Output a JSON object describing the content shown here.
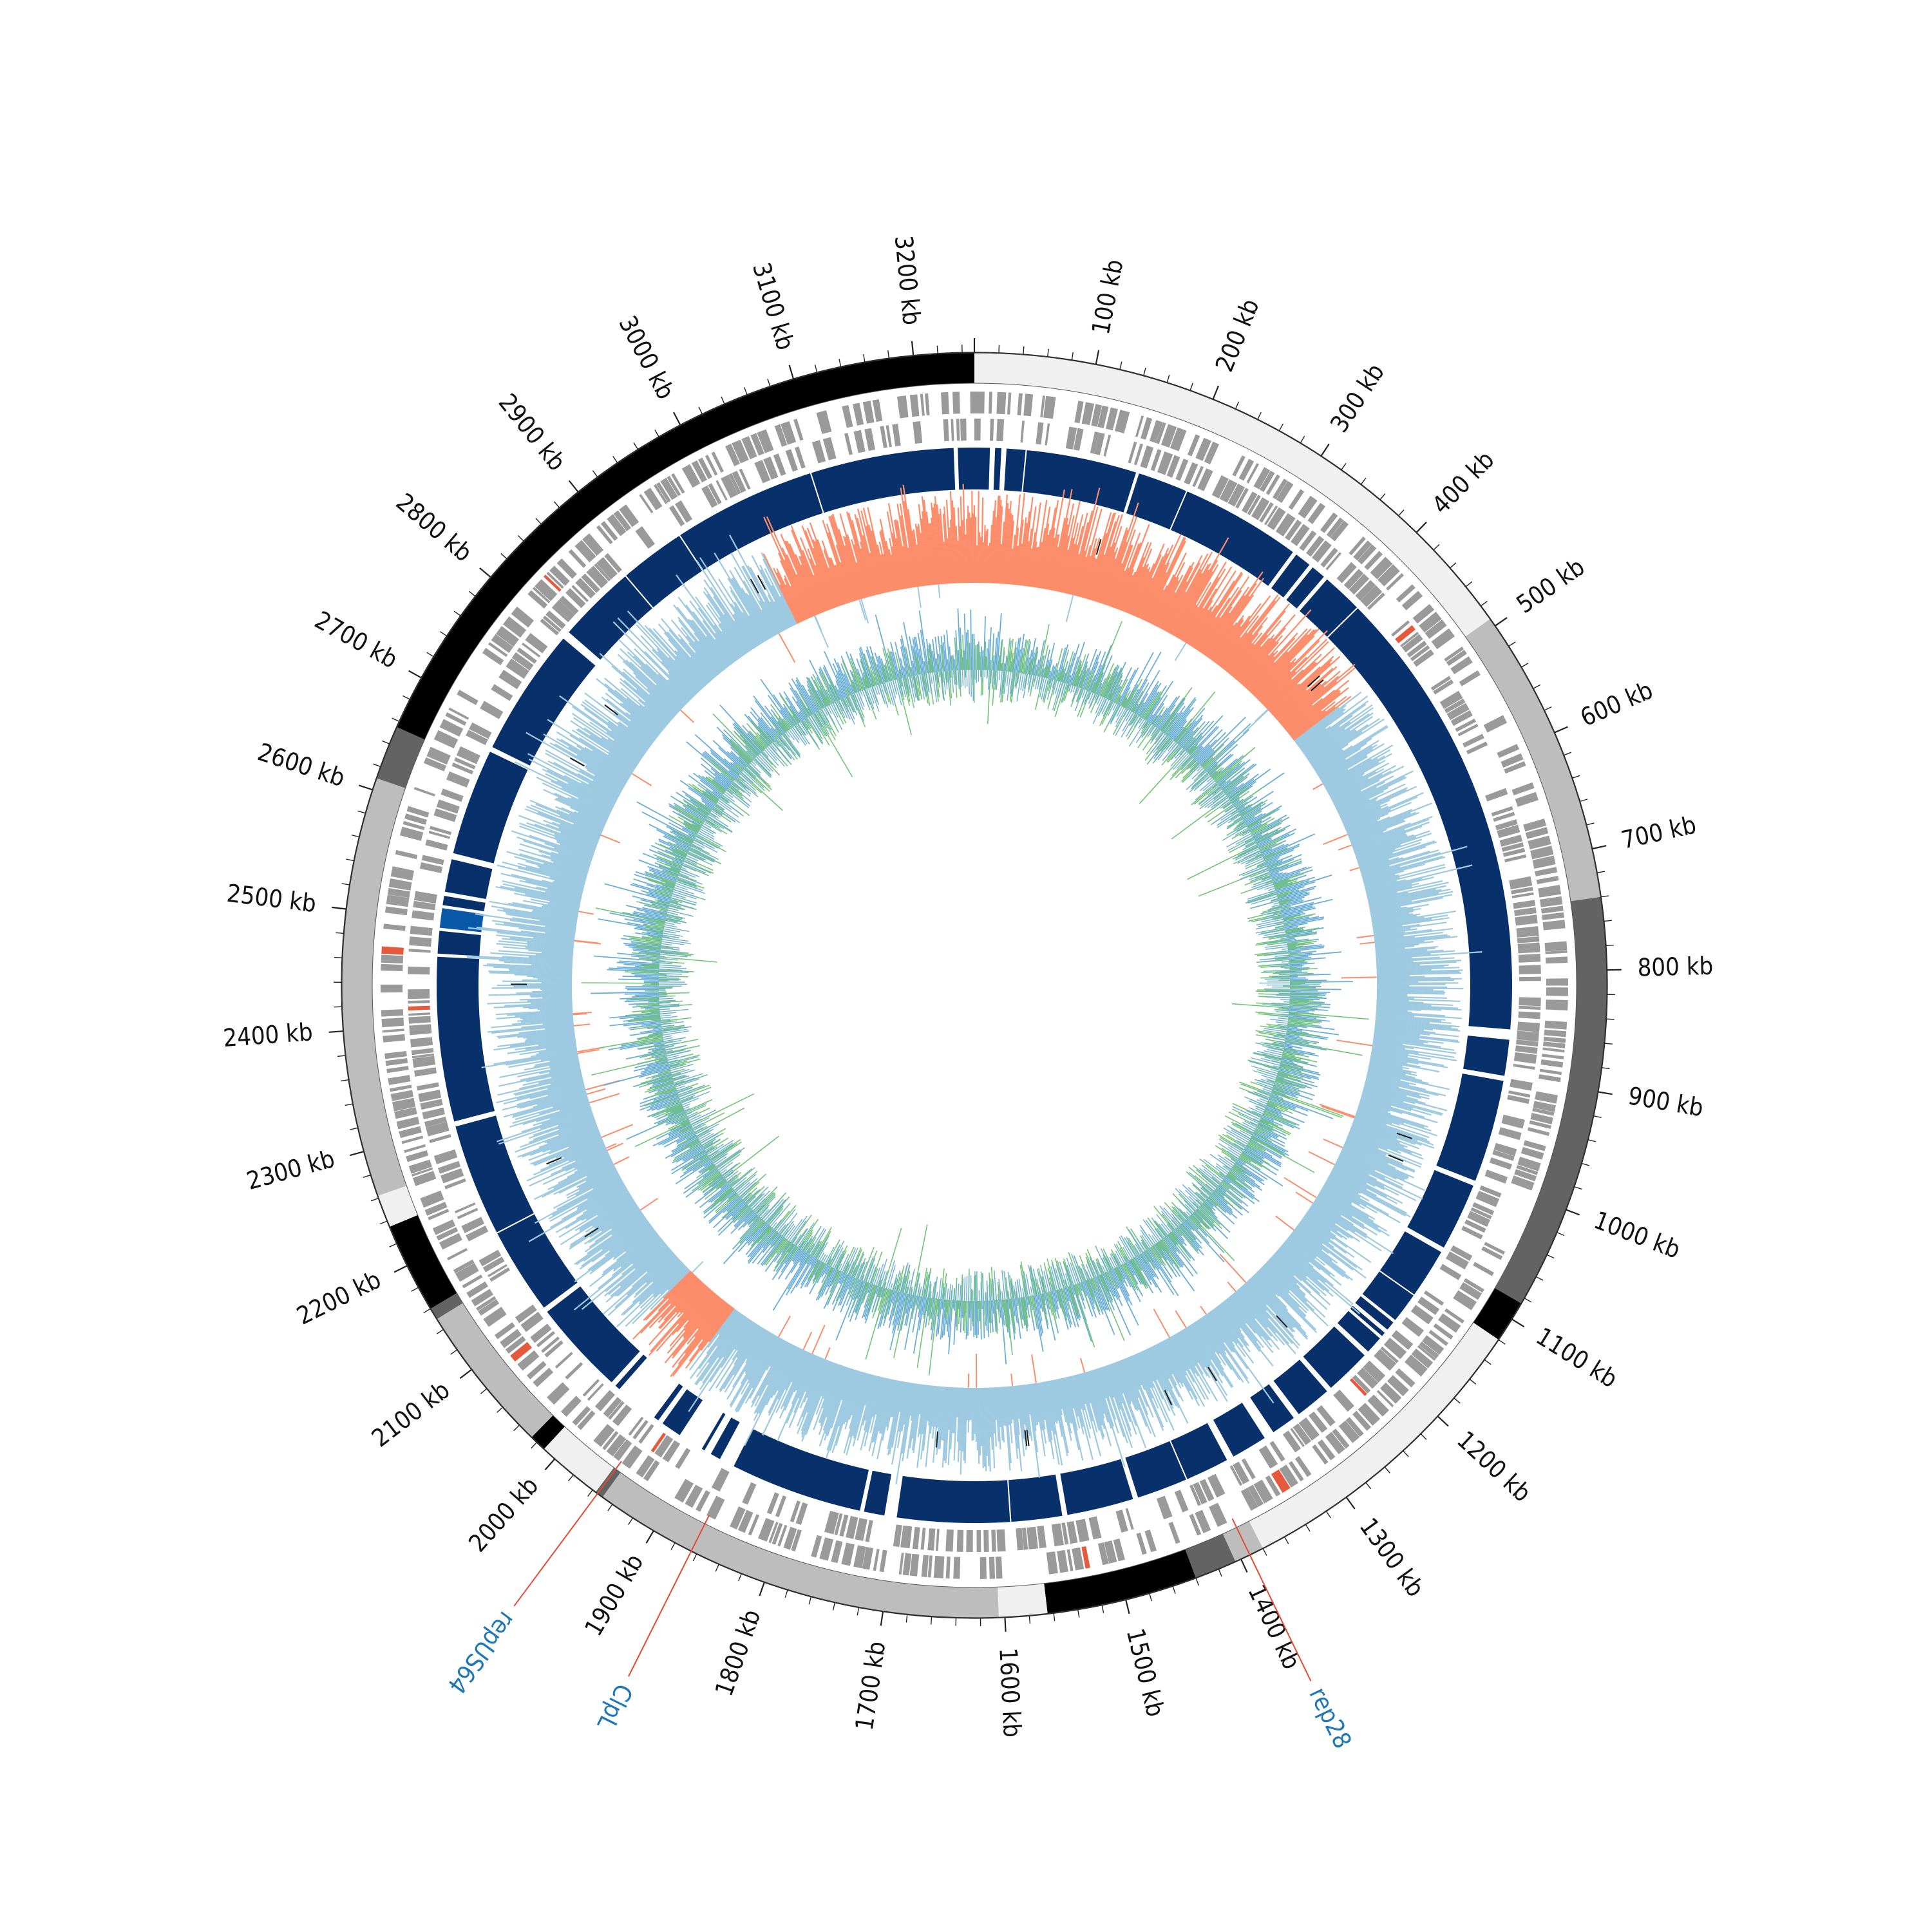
{
  "genome": {
    "length_kb": 3250,
    "tick_unit": "kb",
    "major_tick_labels": [
      "100 kb",
      "200 kb",
      "300 kb",
      "400 kb",
      "500 kb",
      "600 kb",
      "700 kb",
      "800 kb",
      "900 kb",
      "1000 kb",
      "1100 kb",
      "1200 kb",
      "1300 kb",
      "1400 kb",
      "1500 kb",
      "1600 kb",
      "1700 kb",
      "1800 kb",
      "1900 kb",
      "2000 kb",
      "2100 kb",
      "2200 kb",
      "2300 kb",
      "2400 kb",
      "2500 kb",
      "2600 kb",
      "2700 kb",
      "2800 kb",
      "2900 kb",
      "3000 kb",
      "3100 kb",
      "3200 kb"
    ]
  },
  "chart_data": {
    "type": "circular-genome-map",
    "tracks": [
      {
        "track": "outer-segments",
        "segments": [
          {
            "start": 0,
            "end": 493,
            "color": "#f0f0f0"
          },
          {
            "start": 493,
            "end": 740,
            "color": "#bdbdbd"
          },
          {
            "start": 740,
            "end": 1085,
            "color": "#636363"
          },
          {
            "start": 1085,
            "end": 1120,
            "color": "#000000"
          },
          {
            "start": 1120,
            "end": 1380,
            "color": "#f0f0f0"
          },
          {
            "start": 1380,
            "end": 1405,
            "color": "#bdbdbd"
          },
          {
            "start": 1405,
            "end": 1440,
            "color": "#636363"
          },
          {
            "start": 1440,
            "end": 1565,
            "color": "#000000"
          },
          {
            "start": 1565,
            "end": 1605,
            "color": "#f0f0f0"
          },
          {
            "start": 1605,
            "end": 1950,
            "color": "#bdbdbd"
          },
          {
            "start": 1950,
            "end": 1957,
            "color": "#636363"
          },
          {
            "start": 1957,
            "end": 2012,
            "color": "#f0f0f0"
          },
          {
            "start": 2012,
            "end": 2026,
            "color": "#000000"
          },
          {
            "start": 2026,
            "end": 2150,
            "color": "#bdbdbd"
          },
          {
            "start": 2150,
            "end": 2160,
            "color": "#636363"
          },
          {
            "start": 2160,
            "end": 2235,
            "color": "#000000"
          },
          {
            "start": 2235,
            "end": 2262,
            "color": "#f0f0f0"
          },
          {
            "start": 2262,
            "end": 2610,
            "color": "#bdbdbd"
          },
          {
            "start": 2610,
            "end": 2655,
            "color": "#636363"
          },
          {
            "start": 2655,
            "end": 3250,
            "color": "#000000"
          }
        ]
      },
      {
        "track": "gc-skew",
        "positive_color": "#9ecae1",
        "negative_color": "#fc8d6b",
        "negative_regions": [
          [
            0,
            475
          ],
          [
            1955,
            2030
          ],
          [
            3015,
            3250
          ]
        ]
      },
      {
        "track": "gc-content",
        "series": [
          {
            "color": "#6baed6"
          },
          {
            "color": "#74c476"
          }
        ]
      }
    ]
  },
  "gene_labels": [
    {
      "name": "rep28",
      "position_kb": 1392
    },
    {
      "name": "ClpL",
      "position_kb": 1865
    },
    {
      "name": "repUS64",
      "position_kb": 1955
    }
  ]
}
